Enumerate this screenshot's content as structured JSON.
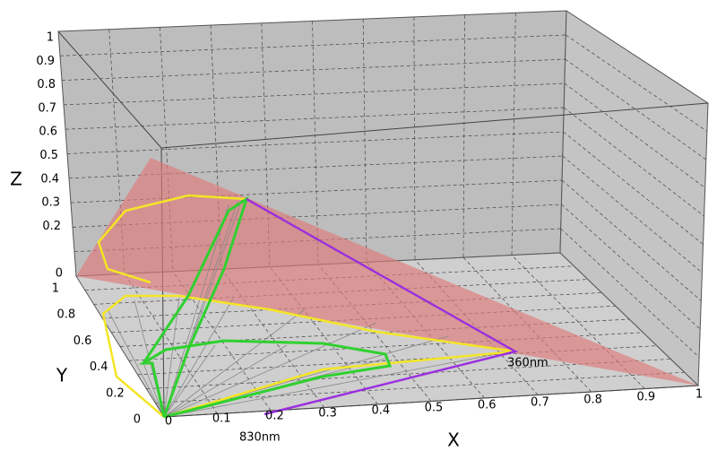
{
  "axes": {
    "x": {
      "label": "X",
      "ticks": [
        0,
        0.1,
        0.2,
        0.3,
        0.4,
        0.5,
        0.6,
        0.7,
        0.8,
        0.9,
        1
      ]
    },
    "y": {
      "label": "Y",
      "ticks": [
        0,
        0.2,
        0.4,
        0.6,
        0.8,
        1
      ]
    },
    "z": {
      "label": "Z",
      "ticks": [
        0,
        0.2,
        0.3,
        0.4,
        0.5,
        0.6,
        0.7,
        0.8,
        0.9,
        1
      ]
    }
  },
  "annotations": [
    "360nm",
    "830nm"
  ]
}
